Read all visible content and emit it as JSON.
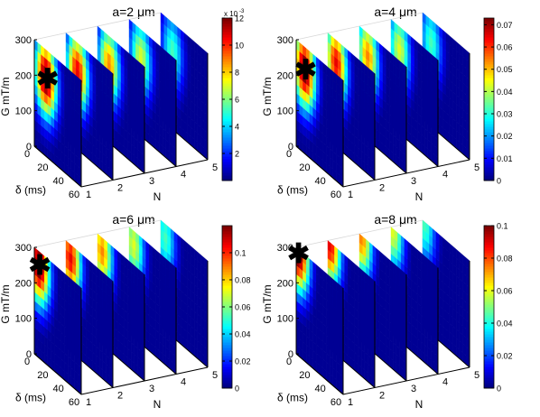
{
  "chart_data": [
    {
      "type": "surface3d",
      "title": "a=2 μm",
      "xlabel": "δ (ms)",
      "ylabel": "N",
      "zlabel": "G mT/m",
      "x_ticks": [
        "0",
        "20",
        "40",
        "60"
      ],
      "y_ticks": [
        "1",
        "2",
        "3",
        "4",
        "5"
      ],
      "z_ticks": [
        "0",
        "100",
        "200",
        "300"
      ],
      "xlim": [
        0,
        60
      ],
      "ylim": [
        1,
        5
      ],
      "zlim": [
        0,
        300
      ],
      "colorbar": {
        "min": 0,
        "max": 0.012,
        "exponent": "x 10",
        "exponent_power": "-3",
        "ticks": [
          "2",
          "4",
          "6",
          "8",
          "10",
          "12"
        ]
      },
      "marker": {
        "delta_ms": 17,
        "N": 1,
        "G": 225
      },
      "peak": {
        "delta_ms": 15,
        "G": 220
      },
      "colormap": "jet"
    },
    {
      "type": "surface3d",
      "title": "a=4 μm",
      "xlabel": "δ (ms)",
      "ylabel": "N",
      "zlabel": "G mT/m",
      "x_ticks": [
        "0",
        "20",
        "40",
        "60"
      ],
      "y_ticks": [
        "1",
        "2",
        "3",
        "4",
        "5"
      ],
      "z_ticks": [
        "0",
        "100",
        "200",
        "300"
      ],
      "xlim": [
        0,
        60
      ],
      "ylim": [
        1,
        5
      ],
      "zlim": [
        0,
        300
      ],
      "colorbar": {
        "min": 0,
        "max": 0.073,
        "ticks": [
          "0",
          "0.01",
          "0.02",
          "0.03",
          "0.04",
          "0.05",
          "0.06",
          "0.07"
        ]
      },
      "marker": {
        "delta_ms": 12,
        "N": 1,
        "G": 240
      },
      "peak": {
        "delta_ms": 11,
        "G": 235
      },
      "colormap": "jet"
    },
    {
      "type": "surface3d",
      "title": "a=6 μm",
      "xlabel": "δ (ms)",
      "ylabel": "N",
      "zlabel": "G mT/m",
      "x_ticks": [
        "0",
        "20",
        "40",
        "60"
      ],
      "y_ticks": [
        "1",
        "2",
        "3",
        "4",
        "5"
      ],
      "z_ticks": [
        "0",
        "100",
        "200",
        "300"
      ],
      "xlim": [
        0,
        60
      ],
      "ylim": [
        1,
        5
      ],
      "zlim": [
        0,
        300
      ],
      "colorbar": {
        "min": 0,
        "max": 0.12,
        "ticks": [
          "0",
          "0.02",
          "0.04",
          "0.06",
          "0.08",
          "0.1"
        ]
      },
      "marker": {
        "delta_ms": 7,
        "N": 1,
        "G": 265
      },
      "peak": {
        "delta_ms": 6,
        "G": 260
      },
      "colormap": "jet"
    },
    {
      "type": "surface3d",
      "title": "a=8 μm",
      "xlabel": "δ (ms)",
      "ylabel": "N",
      "zlabel": "G mT/m",
      "x_ticks": [
        "0",
        "20",
        "40",
        "60"
      ],
      "y_ticks": [
        "1",
        "2",
        "3",
        "4",
        "5"
      ],
      "z_ticks": [
        "0",
        "100",
        "200",
        "300"
      ],
      "xlim": [
        0,
        60
      ],
      "ylim": [
        1,
        5
      ],
      "zlim": [
        0,
        300
      ],
      "colorbar": {
        "min": 0,
        "max": 0.1,
        "ticks": [
          "0",
          "0.02",
          "0.04",
          "0.06",
          "0.08",
          "0.1"
        ]
      },
      "marker": {
        "delta_ms": 3,
        "N": 1,
        "G": 290
      },
      "peak": {
        "delta_ms": 3,
        "G": 290
      },
      "colormap": "jet"
    }
  ]
}
